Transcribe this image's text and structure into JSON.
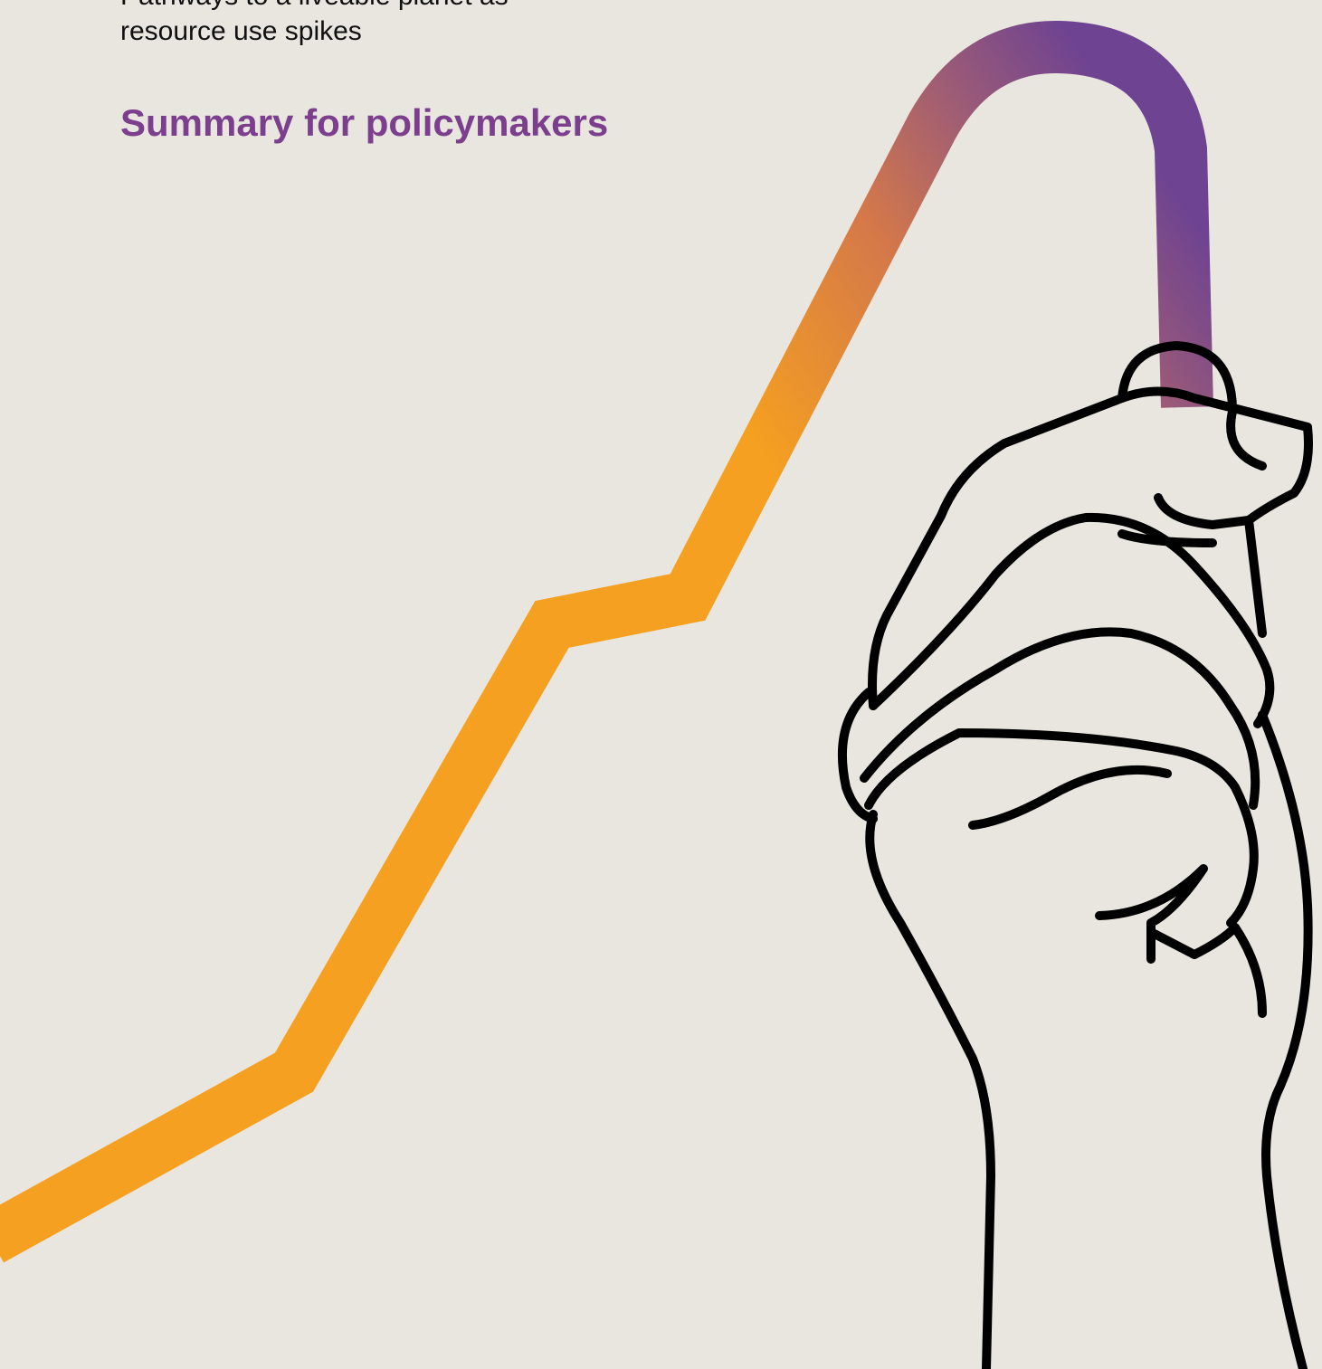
{
  "cover": {
    "subtitle_lines": [
      "Pathways to a liveable planet as",
      "resource use spikes"
    ],
    "title": "Summary for policymakers"
  }
}
